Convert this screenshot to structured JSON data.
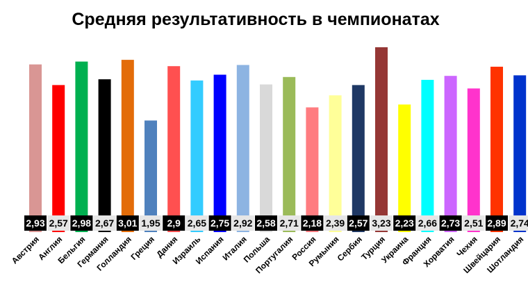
{
  "chart_data": {
    "type": "bar",
    "title": "Средняя результативность в чемпионатах",
    "xlabel": "",
    "ylabel": "",
    "categories": [
      "Австрия",
      "Англия",
      "Бельгия",
      "Германия",
      "Голландия",
      "Греция",
      "Дания",
      "Израиль",
      "Испания",
      "Италия",
      "Польша",
      "Португалия",
      "Россия",
      "Румыния",
      "Сербия",
      "Турция",
      "Украина",
      "Франция",
      "Хорватия",
      "Чехия",
      "Швейцария",
      "Шотландия"
    ],
    "values": [
      2.93,
      2.57,
      2.98,
      2.67,
      3.01,
      1.95,
      2.9,
      2.65,
      2.75,
      2.92,
      2.58,
      2.71,
      2.18,
      2.39,
      2.57,
      3.23,
      2.23,
      2.66,
      2.73,
      2.51,
      2.89,
      2.74
    ],
    "value_labels": [
      "2,93",
      "2,57",
      "2,98",
      "2,67",
      "3,01",
      "1,95",
      "2,9",
      "2,65",
      "2,75",
      "2,92",
      "2,58",
      "2,71",
      "2,18",
      "2,39",
      "2,57",
      "3,23",
      "2,23",
      "2,66",
      "2,73",
      "2,51",
      "2,89",
      "2,74"
    ],
    "colors": [
      "#d99694",
      "#ff0000",
      "#00b050",
      "#000000",
      "#e36c09",
      "#4f81bd",
      "#ff5050",
      "#33ccff",
      "#0000ff",
      "#8db4e2",
      "#d9d9d9",
      "#9bbb59",
      "#ff7c80",
      "#ffff99",
      "#1f3864",
      "#953735",
      "#ffff00",
      "#00ffff",
      "#cc66ff",
      "#ff33cc",
      "#ff3300",
      "#0033cc"
    ],
    "label_style": [
      "dark",
      "light",
      "dark",
      "light",
      "dark",
      "light",
      "dark",
      "light",
      "dark",
      "light",
      "dark",
      "light",
      "dark",
      "light",
      "dark",
      "light",
      "dark",
      "light",
      "dark",
      "light",
      "dark",
      "light"
    ],
    "ylim": [
      0,
      3.5
    ],
    "grid": false,
    "legend": "none"
  }
}
